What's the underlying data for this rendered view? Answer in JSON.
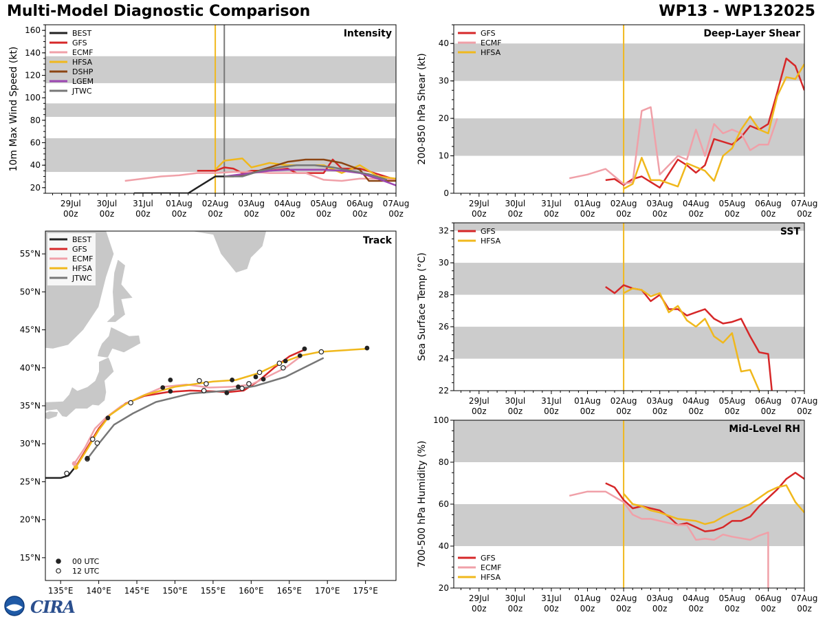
{
  "figure": {
    "title": "Multi-Model Diagnostic Comparison",
    "storm_id": "WP13 - WP132025",
    "logo_text": "CIRA",
    "date_ticks": [
      "29Jul\n00z",
      "30Jul\n00z",
      "31Jul\n00z",
      "01Aug\n00z",
      "02Aug\n00z",
      "03Aug\n00z",
      "04Aug\n00z",
      "05Aug\n00z",
      "06Aug\n00z",
      "07Aug\n00z"
    ],
    "init_day": 4,
    "colors": {
      "BEST": "#222222",
      "GFS": "#d62728",
      "ECMF": "#f0a0a8",
      "HFSA": "#f0b81c",
      "DSHP": "#8b4513",
      "LGEM": "#9b45b0",
      "JTWC": "#777777",
      "band": "#cccccc",
      "init_line": "#f0b81c",
      "jtwc_line": "#777777",
      "land": "#c8c8c8"
    }
  },
  "chart_data": [
    {
      "panel": "intensity",
      "type": "line",
      "title": "Intensity",
      "xlabel": "",
      "ylabel": "10m Max Wind Speed (kt)",
      "x_unit": "days since 29Jul 00z",
      "xlim": [
        -0.7,
        9.0
      ],
      "ylim": [
        15,
        165
      ],
      "yticks": [
        20,
        40,
        60,
        80,
        100,
        120,
        140,
        160
      ],
      "bands": [
        [
          34,
          64
        ],
        [
          83,
          95
        ],
        [
          113,
          137
        ]
      ],
      "vlines": [
        {
          "x": 4.0,
          "color": "init_line"
        },
        {
          "x": 4.25,
          "color": "jtwc_line"
        }
      ],
      "legend": "top-left",
      "series": [
        {
          "name": "BEST",
          "x": [
            1.75,
            2,
            2.5,
            3,
            3.25,
            3.5,
            4,
            4.25
          ],
          "y": [
            15,
            15,
            15,
            15,
            15,
            20,
            30,
            30
          ]
        },
        {
          "name": "GFS",
          "x": [
            3.5,
            3.75,
            4.0,
            4.25,
            4.5,
            4.75,
            5.0,
            5.5,
            6.0,
            6.25,
            6.5,
            7.0,
            7.25,
            7.5,
            8.0,
            8.5,
            9.0
          ],
          "y": [
            35,
            35,
            35,
            38,
            37,
            33,
            35,
            35,
            37,
            33,
            33,
            33,
            45,
            37,
            37,
            32,
            27
          ]
        },
        {
          "name": "ECMF",
          "x": [
            1.5,
            2.0,
            2.5,
            3.0,
            3.5,
            4.0,
            4.5,
            5.0,
            5.5,
            6.0,
            6.5,
            7.0,
            7.5,
            8.0,
            8.5,
            9.0
          ],
          "y": [
            26,
            28,
            30,
            31,
            33,
            33,
            34,
            34,
            33,
            33,
            33,
            27,
            26,
            28,
            28,
            27
          ]
        },
        {
          "name": "HFSA",
          "x": [
            4.0,
            4.25,
            4.5,
            4.75,
            5.0,
            5.5,
            6.0,
            6.5,
            7.0,
            7.5,
            8.0,
            8.5,
            9.0
          ],
          "y": [
            36,
            44,
            45,
            46,
            38,
            42,
            40,
            40,
            40,
            33,
            40,
            30,
            28
          ]
        },
        {
          "name": "DSHP",
          "x": [
            4.25,
            4.5,
            5.0,
            5.5,
            6.0,
            6.5,
            7.0,
            7.5,
            8.0,
            8.25,
            8.5,
            9.0
          ],
          "y": [
            30,
            30,
            33,
            38,
            43,
            45,
            45,
            42,
            36,
            26,
            26,
            26
          ]
        },
        {
          "name": "LGEM",
          "x": [
            4.25,
            4.5,
            5.0,
            5.5,
            6.0,
            6.5,
            7.0,
            7.5,
            8.0,
            8.5,
            9.0
          ],
          "y": [
            30,
            31,
            33,
            35,
            36,
            36,
            36,
            35,
            33,
            28,
            22
          ]
        },
        {
          "name": "JTWC",
          "x": [
            4.25,
            4.75,
            5.25,
            5.75,
            6.25,
            6.75,
            7.25,
            7.75,
            8.25,
            8.75
          ],
          "y": [
            30,
            30,
            35,
            38,
            40,
            40,
            38,
            35,
            32,
            27
          ]
        }
      ]
    },
    {
      "panel": "shear",
      "type": "line",
      "title": "Deep-Layer Shear",
      "xlabel": "",
      "ylabel": "200-850 hPa Shear (kt)",
      "x_unit": "days since 29Jul 00z",
      "xlim": [
        -0.7,
        9.0
      ],
      "ylim": [
        0,
        45
      ],
      "yticks": [
        0,
        10,
        20,
        30,
        40
      ],
      "bands": [
        [
          10,
          20
        ],
        [
          30,
          40
        ]
      ],
      "vlines": [
        {
          "x": 4.0,
          "color": "init_line"
        }
      ],
      "legend": "top-left",
      "series": [
        {
          "name": "GFS",
          "x": [
            3.5,
            3.75,
            4.0,
            4.25,
            4.5,
            4.75,
            5.0,
            5.5,
            5.75,
            6.0,
            6.25,
            6.5,
            7.0,
            7.25,
            7.5,
            7.75,
            8.0,
            8.25,
            8.5,
            8.75,
            9.0
          ],
          "y": [
            3.5,
            3.8,
            2.2,
            3.8,
            4.5,
            3,
            1.5,
            9,
            7.5,
            5.5,
            7.5,
            14.5,
            13,
            15,
            18,
            17,
            18.5,
            27,
            36,
            34,
            27.5
          ]
        },
        {
          "name": "ECMF",
          "x": [
            2.5,
            3.0,
            3.5,
            4.0,
            4.25,
            4.5,
            4.75,
            5.0,
            5.5,
            5.75,
            6.0,
            6.25,
            6.5,
            6.75,
            7.0,
            7.25,
            7.5,
            7.75,
            8.0,
            8.25
          ],
          "y": [
            4,
            5,
            6.5,
            2.5,
            3,
            22,
            23,
            5,
            10,
            9,
            17,
            10,
            18.5,
            16,
            17,
            16,
            11.5,
            13,
            13,
            20
          ]
        },
        {
          "name": "HFSA",
          "x": [
            4.0,
            4.25,
            4.5,
            4.75,
            5.0,
            5.5,
            5.75,
            6.0,
            6.25,
            6.5,
            6.75,
            7.0,
            7.25,
            7.5,
            7.75,
            8.0,
            8.25,
            8.5,
            8.75,
            9.0
          ],
          "y": [
            1.2,
            2.5,
            9.5,
            3.5,
            3.5,
            1.8,
            8,
            7,
            6,
            3.3,
            10,
            12,
            17,
            20.5,
            17,
            16,
            26,
            31,
            30.5,
            34.5
          ]
        }
      ]
    },
    {
      "panel": "sst",
      "type": "line",
      "title": "SST",
      "xlabel": "",
      "ylabel": "Sea Surface Temp (°C)",
      "x_unit": "days since 29Jul 00z",
      "xlim": [
        -0.7,
        9.0
      ],
      "ylim": [
        22,
        32.5
      ],
      "yticks": [
        22,
        24,
        26,
        28,
        30,
        32
      ],
      "bands": [
        [
          24,
          26
        ],
        [
          28,
          30
        ],
        [
          32,
          34
        ]
      ],
      "vlines": [
        {
          "x": 4.0,
          "color": "init_line"
        }
      ],
      "legend": "top-left",
      "series": [
        {
          "name": "GFS",
          "x": [
            3.5,
            3.75,
            4.0,
            4.25,
            4.5,
            4.75,
            5.0,
            5.25,
            5.5,
            5.75,
            6.0,
            6.25,
            6.5,
            6.75,
            7.0,
            7.25,
            7.5,
            7.75,
            8.0,
            8.1,
            8.3
          ],
          "y": [
            28.5,
            28.1,
            28.6,
            28.4,
            28.3,
            27.6,
            28.0,
            27.1,
            27.1,
            26.7,
            26.9,
            27.1,
            26.5,
            26.2,
            26.3,
            26.5,
            25.4,
            24.4,
            24.3,
            22.0,
            20.5
          ]
        },
        {
          "name": "HFSA",
          "x": [
            4.0,
            4.25,
            4.5,
            4.75,
            5.0,
            5.25,
            5.5,
            5.75,
            6.0,
            6.25,
            6.5,
            6.75,
            7.0,
            7.25,
            7.5,
            7.75,
            8.0,
            8.2
          ],
          "y": [
            28.1,
            28.4,
            28.3,
            27.9,
            28.1,
            26.9,
            27.3,
            26.4,
            26.0,
            26.5,
            25.4,
            25.0,
            25.6,
            23.2,
            23.3,
            22.0,
            21.0,
            20.5
          ]
        }
      ]
    },
    {
      "panel": "rh",
      "type": "line",
      "title": "Mid-Level RH",
      "xlabel": "",
      "ylabel": "700-500 hPa Humidity (%)",
      "x_unit": "days since 29Jul 00z",
      "xlim": [
        -0.7,
        9.0
      ],
      "ylim": [
        20,
        100
      ],
      "yticks": [
        20,
        40,
        60,
        80,
        100
      ],
      "bands": [
        [
          40,
          60
        ],
        [
          80,
          100
        ]
      ],
      "vlines": [
        {
          "x": 4.0,
          "color": "init_line"
        }
      ],
      "legend": "bottom-left",
      "series": [
        {
          "name": "GFS",
          "x": [
            3.5,
            3.75,
            4.0,
            4.25,
            4.5,
            4.75,
            5.0,
            5.25,
            5.5,
            5.75,
            6.0,
            6.25,
            6.5,
            6.75,
            7.0,
            7.25,
            7.5,
            7.75,
            8.0,
            8.25,
            8.5,
            8.75,
            9.0
          ],
          "y": [
            70,
            68,
            62,
            58,
            59,
            58,
            57,
            54,
            50,
            51,
            49,
            47,
            47.5,
            49,
            52,
            52,
            54,
            59,
            63,
            67,
            72,
            75,
            72
          ]
        },
        {
          "name": "ECMF",
          "x": [
            2.5,
            3.0,
            3.5,
            4.0,
            4.25,
            4.5,
            4.75,
            5.0,
            5.5,
            5.75,
            6.0,
            6.25,
            6.5,
            6.75,
            7.0,
            7.5,
            7.75,
            8.0,
            8.0
          ],
          "y": [
            64,
            66,
            66,
            61,
            55,
            53,
            53,
            52,
            50,
            50,
            43,
            43.5,
            43,
            45.5,
            44.5,
            43,
            45,
            46.5,
            20
          ]
        },
        {
          "name": "HFSA",
          "x": [
            4.0,
            4.25,
            4.5,
            4.75,
            5.0,
            5.5,
            6.0,
            6.25,
            6.5,
            6.75,
            7.0,
            7.5,
            8.0,
            8.25,
            8.5,
            8.75,
            9.0
          ],
          "y": [
            65,
            60,
            59,
            57,
            56,
            53,
            52,
            50.5,
            51.5,
            54,
            56,
            60,
            66,
            68,
            69,
            61,
            56
          ]
        }
      ]
    },
    {
      "panel": "track",
      "type": "line",
      "title": "Track",
      "xlim": [
        133,
        179
      ],
      "ylim": [
        12,
        58
      ],
      "xticks": [
        135,
        140,
        145,
        150,
        155,
        160,
        165,
        170,
        175
      ],
      "xtick_labels": [
        "135°E",
        "140°E",
        "145°E",
        "150°E",
        "155°E",
        "160°E",
        "165°E",
        "170°E",
        "175°E"
      ],
      "yticks": [
        15,
        20,
        25,
        30,
        35,
        40,
        45,
        50,
        55
      ],
      "ytick_labels": [
        "15°N",
        "20°N",
        "25°N",
        "30°N",
        "35°N",
        "40°N",
        "45°N",
        "50°N",
        "55°N"
      ],
      "legend": "top-left",
      "marker_legend": [
        {
          "label": "00 UTC",
          "filled": true
        },
        {
          "label": "12 UTC",
          "filled": false
        }
      ],
      "series": [
        {
          "name": "BEST",
          "lon": [
            133,
            134,
            135,
            136,
            136.8
          ],
          "lat": [
            25.5,
            25.5,
            25.5,
            25.8,
            26.8
          ]
        },
        {
          "name": "GFS",
          "lon": [
            137.0,
            138.5,
            140.0,
            141.5,
            143.5,
            146.0,
            149.0,
            152.0,
            155.0,
            157.0,
            159.0,
            161.0,
            163.0,
            165.0,
            167.0
          ],
          "lat": [
            27.0,
            29.5,
            32.0,
            33.8,
            35.3,
            36.3,
            36.8,
            37.0,
            36.9,
            36.8,
            37.0,
            38.3,
            40.0,
            41.5,
            42.4
          ]
        },
        {
          "name": "ECMF",
          "lon": [
            136.8,
            138.2,
            139.5,
            141.0,
            143.0,
            145.5,
            148.5,
            151.5,
            154.5,
            157.5,
            160.0,
            162.5,
            164.5,
            166.5
          ],
          "lat": [
            27.4,
            29.5,
            32.0,
            33.5,
            35.0,
            36.2,
            37.5,
            37.8,
            37.4,
            37.5,
            37.8,
            39.0,
            40.0,
            41.5
          ]
        },
        {
          "name": "HFSA",
          "lon": [
            137.0,
            138.5,
            140.0,
            141.5,
            143.5,
            146.0,
            150.0,
            155.0,
            158.0,
            161.0,
            163.5,
            166.5,
            169.0,
            175.0
          ],
          "lat": [
            26.9,
            29.3,
            31.8,
            33.8,
            35.2,
            36.4,
            37.5,
            38.2,
            38.4,
            39.3,
            40.5,
            41.6,
            42.1,
            42.5
          ]
        },
        {
          "name": "JTWC",
          "lon": [
            138.5,
            140.0,
            142.0,
            144.5,
            147.5,
            152.0,
            157.0,
            160.5,
            164.5,
            169.5
          ],
          "lat": [
            28.0,
            30.0,
            32.5,
            34.0,
            35.5,
            36.6,
            37.0,
            37.6,
            38.8,
            41.3
          ]
        }
      ],
      "filled_markers": [
        [
          141.2,
          33.4
        ],
        [
          148.4,
          37.4
        ],
        [
          149.4,
          36.9
        ],
        [
          149.4,
          38.4
        ],
        [
          156.8,
          36.7
        ],
        [
          157.5,
          38.4
        ],
        [
          158.3,
          37.5
        ],
        [
          160.6,
          38.8
        ],
        [
          161.6,
          38.5
        ],
        [
          164.5,
          40.9
        ],
        [
          166.4,
          41.6
        ],
        [
          167.0,
          42.5
        ],
        [
          175.2,
          42.6
        ],
        [
          138.5,
          28.1
        ]
      ],
      "open_markers": [
        [
          135.8,
          26.1
        ],
        [
          139.2,
          30.6
        ],
        [
          139.8,
          30.1
        ],
        [
          144.2,
          35.4
        ],
        [
          153.2,
          38.3
        ],
        [
          153.8,
          37.0
        ],
        [
          154.1,
          37.9
        ],
        [
          158.8,
          37.3
        ],
        [
          159.7,
          37.9
        ],
        [
          161.1,
          39.4
        ],
        [
          163.7,
          40.6
        ],
        [
          164.2,
          40.0
        ],
        [
          169.2,
          42.1
        ],
        [
          138.5,
          28.0
        ]
      ]
    }
  ]
}
